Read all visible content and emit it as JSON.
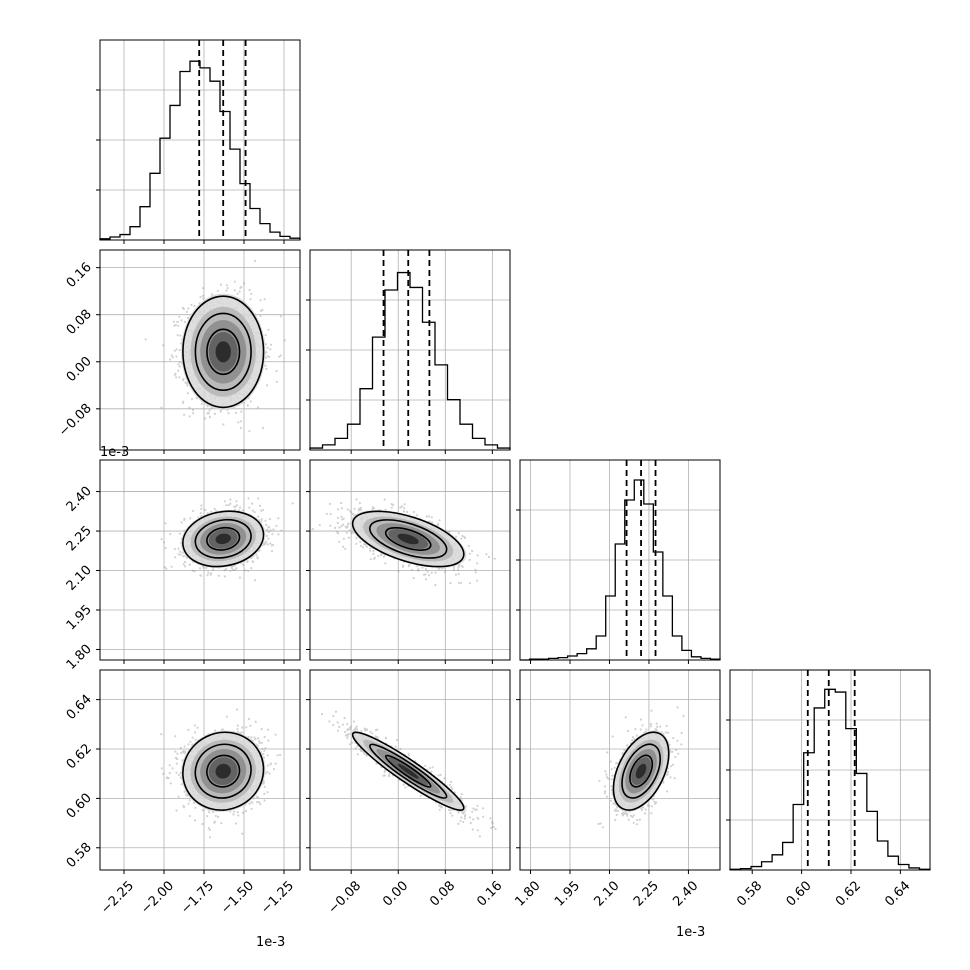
{
  "chart_data": {
    "type": "corner",
    "n_params": 4,
    "grid": true,
    "quantile_lines": "dashed",
    "params": [
      {
        "range": [
          -2.4,
          -1.15
        ],
        "ticks": [
          "-2.25",
          "-2.00",
          "-1.75",
          "-1.50",
          "-1.25"
        ],
        "tick_values": [
          -2.25,
          -2.0,
          -1.75,
          -1.5,
          -1.25
        ],
        "offset_label": "1e-3",
        "quantiles": [
          -1.78,
          -1.63,
          -1.49
        ],
        "hist_counts": [
          2,
          5,
          9,
          22,
          55,
          110,
          168,
          222,
          278,
          295,
          284,
          262,
          212,
          150,
          93,
          52,
          27,
          13,
          6,
          3
        ],
        "hist_ylim": [
          0,
          330
        ]
      },
      {
        "range": [
          -0.15,
          0.19
        ],
        "ticks": [
          "-0.08",
          "0.00",
          "0.08",
          "0.16"
        ],
        "tick_values": [
          -0.08,
          0.0,
          0.08,
          0.16
        ],
        "offset_label": "",
        "quantiles": [
          -0.025,
          0.017,
          0.053
        ],
        "hist_counts": [
          3,
          8,
          18,
          40,
          95,
          175,
          248,
          275,
          252,
          198,
          132,
          78,
          40,
          18,
          8,
          3
        ],
        "hist_ylim": [
          0,
          310
        ]
      },
      {
        "range": [
          1.76,
          2.52
        ],
        "ticks": [
          "1.80",
          "1.95",
          "2.10",
          "2.25",
          "2.40"
        ],
        "tick_values": [
          1.8,
          1.95,
          2.1,
          2.25,
          2.4
        ],
        "offset_label": "1e-3",
        "quantiles": [
          2.165,
          2.22,
          2.275
        ],
        "hist_counts": [
          0,
          1,
          1,
          2,
          3,
          5,
          8,
          14,
          30,
          80,
          145,
          200,
          225,
          195,
          135,
          80,
          30,
          12,
          4,
          2,
          1
        ],
        "hist_ylim": [
          0,
          250
        ]
      },
      {
        "range": [
          0.571,
          0.652
        ],
        "ticks": [
          "0.58",
          "0.60",
          "0.62",
          "0.64"
        ],
        "tick_values": [
          0.58,
          0.6,
          0.62,
          0.64
        ],
        "offset_label": "",
        "quantiles": [
          0.6025,
          0.611,
          0.6215
        ],
        "hist_counts": [
          1,
          2,
          5,
          12,
          22,
          40,
          95,
          170,
          235,
          262,
          258,
          205,
          140,
          85,
          42,
          20,
          8,
          3,
          1
        ],
        "hist_ylim": [
          0,
          290
        ]
      }
    ],
    "pairs": [
      {
        "x": 0,
        "y": 1,
        "mean": [
          -1.63,
          0.017
        ],
        "sd": [
          0.12,
          0.045
        ],
        "rho": 0.0
      },
      {
        "x": 0,
        "y": 2,
        "mean": [
          -1.63,
          2.22
        ],
        "sd": [
          0.12,
          0.05
        ],
        "rho": 0.15
      },
      {
        "x": 1,
        "y": 2,
        "mean": [
          0.017,
          2.22
        ],
        "sd": [
          0.045,
          0.05
        ],
        "rho": -0.55
      },
      {
        "x": 0,
        "y": 3,
        "mean": [
          -1.63,
          0.611
        ],
        "sd": [
          0.12,
          0.0075
        ],
        "rho": 0.05
      },
      {
        "x": 1,
        "y": 3,
        "mean": [
          0.017,
          0.611
        ],
        "sd": [
          0.045,
          0.0075
        ],
        "rho": -0.94
      },
      {
        "x": 2,
        "y": 3,
        "mean": [
          2.22,
          0.611
        ],
        "sd": [
          0.05,
          0.0075
        ],
        "rho": 0.45
      }
    ]
  }
}
